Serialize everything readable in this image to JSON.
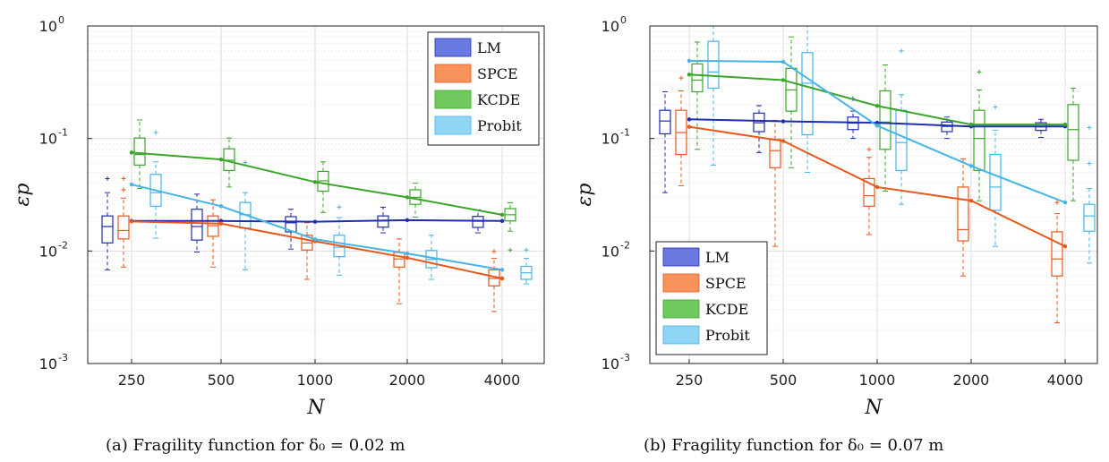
{
  "chart_data": [
    {
      "type": "box",
      "caption": "(a) Fragility function for δ₀ = 0.02 m",
      "xlabel": "N",
      "ylabel": "εp",
      "yscale": "log",
      "ylim": [
        0.001,
        1
      ],
      "yticks": [
        {
          "base": "10",
          "exp": "-3"
        },
        {
          "base": "10",
          "exp": "-2"
        },
        {
          "base": "10",
          "exp": "-1"
        },
        {
          "base": "10",
          "exp": "0"
        }
      ],
      "categories": [
        "250",
        "500",
        "1000",
        "2000",
        "4000"
      ],
      "grid": true,
      "legend_position": "top-right",
      "series": [
        {
          "name": "LM",
          "color": "#1f2db0",
          "fill": "#6b7ae0",
          "line": [
            0.0185,
            0.0185,
            0.0182,
            0.0188,
            0.0185
          ],
          "boxes": [
            {
              "q1": 0.0118,
              "med": 0.0165,
              "q3": 0.0205,
              "wlo": 0.0068,
              "whi": 0.033,
              "outliers": [
                0.044
              ]
            },
            {
              "q1": 0.0125,
              "med": 0.0165,
              "q3": 0.0235,
              "wlo": 0.0098,
              "whi": 0.032,
              "outliers": []
            },
            {
              "q1": 0.0148,
              "med": 0.0178,
              "q3": 0.0202,
              "wlo": 0.0104,
              "whi": 0.0235,
              "outliers": []
            },
            {
              "q1": 0.0163,
              "med": 0.0185,
              "q3": 0.0205,
              "wlo": 0.0145,
              "whi": 0.0245,
              "outliers": []
            },
            {
              "q1": 0.0162,
              "med": 0.0184,
              "q3": 0.0203,
              "wlo": 0.0145,
              "whi": 0.0232,
              "outliers": []
            }
          ]
        },
        {
          "name": "SPCE",
          "color": "#e8581a",
          "fill": "#f7935a",
          "line": [
            0.0183,
            0.0175,
            0.0122,
            0.0087,
            0.0057
          ],
          "boxes": [
            {
              "q1": 0.0128,
              "med": 0.0152,
              "q3": 0.0205,
              "wlo": 0.0072,
              "whi": 0.0295,
              "outliers": [
                0.035,
                0.044
              ]
            },
            {
              "q1": 0.0135,
              "med": 0.0168,
              "q3": 0.0205,
              "wlo": 0.0072,
              "whi": 0.0285,
              "outliers": []
            },
            {
              "q1": 0.0102,
              "med": 0.0118,
              "q3": 0.0138,
              "wlo": 0.0056,
              "whi": 0.0178,
              "outliers": []
            },
            {
              "q1": 0.0072,
              "med": 0.0085,
              "q3": 0.0097,
              "wlo": 0.0034,
              "whi": 0.0128,
              "outliers": []
            },
            {
              "q1": 0.0049,
              "med": 0.0057,
              "q3": 0.0068,
              "wlo": 0.0029,
              "whi": 0.0086,
              "outliers": [
                0.0099
              ]
            }
          ]
        },
        {
          "name": "KCDE",
          "color": "#3aa529",
          "fill": "#6fc95e",
          "line": [
            0.075,
            0.065,
            0.041,
            0.03,
            0.021
          ],
          "boxes": [
            {
              "q1": 0.058,
              "med": 0.072,
              "q3": 0.101,
              "wlo": 0.036,
              "whi": 0.146,
              "outliers": []
            },
            {
              "q1": 0.052,
              "med": 0.064,
              "q3": 0.081,
              "wlo": 0.037,
              "whi": 0.101,
              "outliers": []
            },
            {
              "q1": 0.034,
              "med": 0.042,
              "q3": 0.051,
              "wlo": 0.022,
              "whi": 0.062,
              "outliers": []
            },
            {
              "q1": 0.026,
              "med": 0.03,
              "q3": 0.035,
              "wlo": 0.02,
              "whi": 0.04,
              "outliers": []
            },
            {
              "q1": 0.0185,
              "med": 0.021,
              "q3": 0.0238,
              "wlo": 0.015,
              "whi": 0.0268,
              "outliers": [
                0.0102
              ]
            }
          ]
        },
        {
          "name": "Probit",
          "color": "#45b4e8",
          "fill": "#8fd6f4",
          "line": [
            0.039,
            0.025,
            0.0127,
            0.0095,
            0.0068
          ],
          "boxes": [
            {
              "q1": 0.025,
              "med": 0.033,
              "q3": 0.048,
              "wlo": 0.013,
              "whi": 0.062,
              "outliers": [
                0.113
              ]
            },
            {
              "q1": 0.016,
              "med": 0.021,
              "q3": 0.027,
              "wlo": 0.0068,
              "whi": 0.033,
              "outliers": [
                0.061
              ]
            },
            {
              "q1": 0.0089,
              "med": 0.0108,
              "q3": 0.0138,
              "wlo": 0.0061,
              "whi": 0.0198,
              "outliers": [
                0.0245
              ]
            },
            {
              "q1": 0.0071,
              "med": 0.0084,
              "q3": 0.0101,
              "wlo": 0.0056,
              "whi": 0.0138,
              "outliers": []
            },
            {
              "q1": 0.0056,
              "med": 0.0064,
              "q3": 0.0073,
              "wlo": 0.0051,
              "whi": 0.0086,
              "outliers": [
                0.0102
              ]
            }
          ]
        }
      ]
    },
    {
      "type": "box",
      "caption": "(b) Fragility function for δ₀ = 0.07 m",
      "xlabel": "N",
      "ylabel": "εp",
      "yscale": "log",
      "ylim": [
        0.001,
        1
      ],
      "yticks": [
        {
          "base": "10",
          "exp": "-3"
        },
        {
          "base": "10",
          "exp": "-2"
        },
        {
          "base": "10",
          "exp": "-1"
        },
        {
          "base": "10",
          "exp": "0"
        }
      ],
      "categories": [
        "250",
        "500",
        "1000",
        "2000",
        "4000"
      ],
      "grid": true,
      "legend_position": "bottom-left",
      "series": [
        {
          "name": "LM",
          "color": "#1f2db0",
          "fill": "#6b7ae0",
          "line": [
            0.148,
            0.142,
            0.138,
            0.128,
            0.128
          ],
          "boxes": [
            {
              "q1": 0.11,
              "med": 0.143,
              "q3": 0.178,
              "wlo": 0.033,
              "whi": 0.26,
              "outliers": []
            },
            {
              "q1": 0.115,
              "med": 0.138,
              "q3": 0.168,
              "wlo": 0.075,
              "whi": 0.196,
              "outliers": []
            },
            {
              "q1": 0.12,
              "med": 0.137,
              "q3": 0.155,
              "wlo": 0.1,
              "whi": 0.175,
              "outliers": [
                0.225
              ]
            },
            {
              "q1": 0.115,
              "med": 0.128,
              "q3": 0.14,
              "wlo": 0.1,
              "whi": 0.155,
              "outliers": []
            },
            {
              "q1": 0.118,
              "med": 0.127,
              "q3": 0.138,
              "wlo": 0.102,
              "whi": 0.148,
              "outliers": []
            }
          ]
        },
        {
          "name": "SPCE",
          "color": "#e8581a",
          "fill": "#f7935a",
          "line": [
            0.127,
            0.095,
            0.037,
            0.028,
            0.011
          ],
          "boxes": [
            {
              "q1": 0.072,
              "med": 0.113,
              "q3": 0.178,
              "wlo": 0.038,
              "whi": 0.265,
              "outliers": [
                0.345
              ]
            },
            {
              "q1": 0.055,
              "med": 0.078,
              "q3": 0.098,
              "wlo": 0.011,
              "whi": 0.145,
              "outliers": []
            },
            {
              "q1": 0.025,
              "med": 0.031,
              "q3": 0.044,
              "wlo": 0.014,
              "whi": 0.068,
              "outliers": [
                0.08
              ]
            },
            {
              "q1": 0.0123,
              "med": 0.0155,
              "q3": 0.037,
              "wlo": 0.006,
              "whi": 0.066,
              "outliers": []
            },
            {
              "q1": 0.006,
              "med": 0.0085,
              "q3": 0.0148,
              "wlo": 0.0023,
              "whi": 0.0215,
              "outliers": [
                0.027
              ]
            }
          ]
        },
        {
          "name": "KCDE",
          "color": "#3aa529",
          "fill": "#6fc95e",
          "line": [
            0.37,
            0.33,
            0.195,
            0.133,
            0.133
          ],
          "boxes": [
            {
              "q1": 0.26,
              "med": 0.33,
              "q3": 0.46,
              "wlo": 0.08,
              "whi": 0.72,
              "outliers": []
            },
            {
              "q1": 0.175,
              "med": 0.27,
              "q3": 0.42,
              "wlo": 0.055,
              "whi": 0.8,
              "outliers": []
            },
            {
              "q1": 0.08,
              "med": 0.14,
              "q3": 0.265,
              "wlo": 0.034,
              "whi": 0.45,
              "outliers": []
            },
            {
              "q1": 0.052,
              "med": 0.1,
              "q3": 0.178,
              "wlo": 0.028,
              "whi": 0.27,
              "outliers": [
                0.39
              ]
            },
            {
              "q1": 0.064,
              "med": 0.12,
              "q3": 0.2,
              "wlo": 0.028,
              "whi": 0.28,
              "outliers": []
            }
          ]
        },
        {
          "name": "Probit",
          "color": "#45b4e8",
          "fill": "#8fd6f4",
          "line": [
            0.49,
            0.48,
            0.13,
            0.057,
            0.027
          ],
          "boxes": [
            {
              "q1": 0.28,
              "med": 0.39,
              "q3": 0.73,
              "wlo": 0.058,
              "whi": 1.0,
              "outliers": []
            },
            {
              "q1": 0.108,
              "med": 0.31,
              "q3": 0.58,
              "wlo": 0.05,
              "whi": 1.0,
              "outliers": []
            },
            {
              "q1": 0.052,
              "med": 0.092,
              "q3": 0.178,
              "wlo": 0.026,
              "whi": 0.245,
              "outliers": [
                0.6
              ]
            },
            {
              "q1": 0.023,
              "med": 0.037,
              "q3": 0.072,
              "wlo": 0.011,
              "whi": 0.118,
              "outliers": [
                0.19
              ]
            },
            {
              "q1": 0.015,
              "med": 0.0205,
              "q3": 0.026,
              "wlo": 0.0078,
              "whi": 0.036,
              "outliers": [
                0.06,
                0.125
              ]
            }
          ]
        }
      ]
    }
  ]
}
